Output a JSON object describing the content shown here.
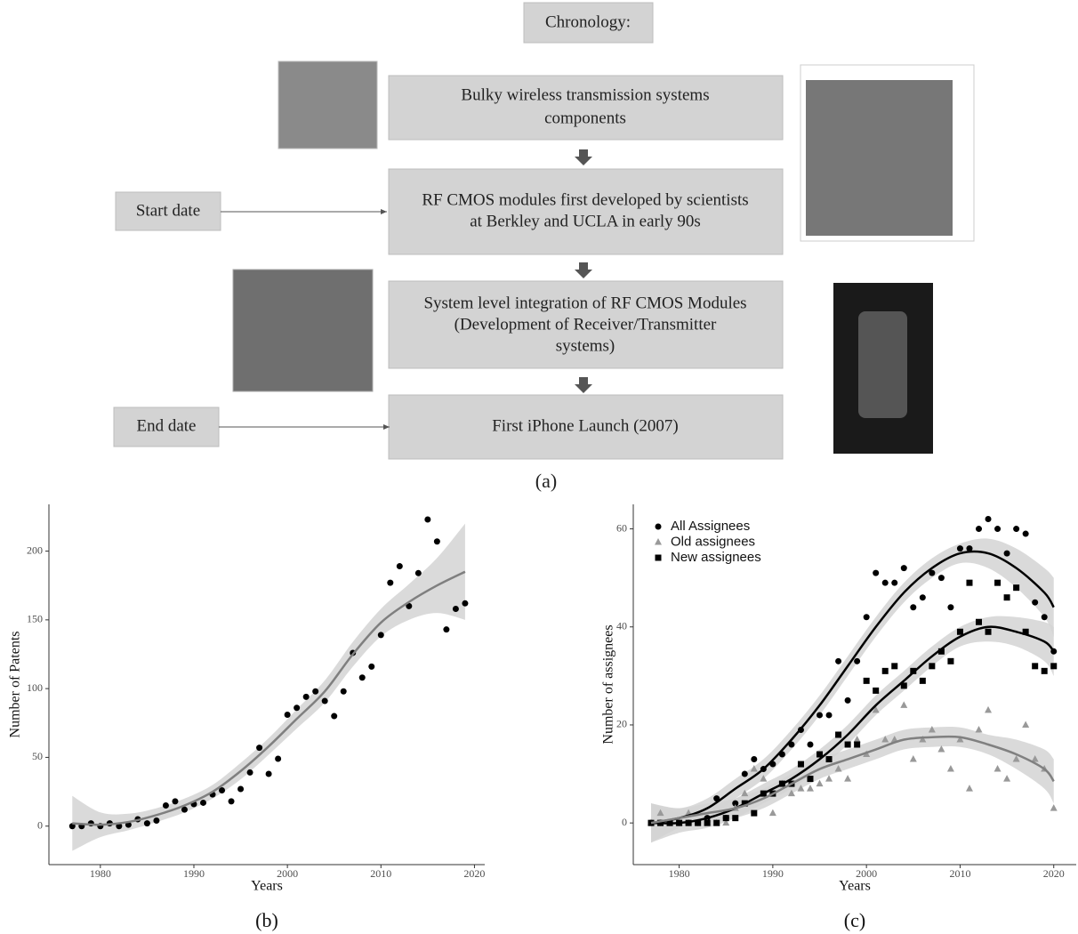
{
  "diagram": {
    "title": "Chronology:",
    "steps": [
      {
        "lines": [
          "Bulky wireless transmission systems",
          "components"
        ]
      },
      {
        "lines": [
          "RF CMOS modules first developed by scientists",
          "at Berkley and UCLA in early 90s"
        ]
      },
      {
        "lines": [
          "System level integration of RF CMOS Modules",
          "(Development of Receiver/Transmitter",
          "systems)"
        ]
      },
      {
        "lines": [
          "First iPhone Launch (2007)"
        ]
      }
    ],
    "start_label": "Start date",
    "end_label": "End date",
    "caption": "(a)"
  },
  "chart_data": [
    {
      "type": "scatter",
      "caption": "(b)",
      "xlabel": "Years",
      "ylabel": "Number of Patents",
      "xlim": [
        1974.5,
        2021.1
      ],
      "ylim": [
        -28,
        234
      ],
      "xticks": [
        1980,
        1990,
        2000,
        2010,
        2020
      ],
      "yticks": [
        0,
        50,
        100,
        150,
        200
      ],
      "series": [
        {
          "color": "#000000",
          "marker": "circle",
          "x": [
            1977,
            1978,
            1979,
            1980,
            1981,
            1982,
            1983,
            1984,
            1985,
            1986,
            1987,
            1988,
            1989,
            1990,
            1991,
            1992,
            1993,
            1994,
            1995,
            1996,
            1997,
            1998,
            1999,
            2000,
            2001,
            2002,
            2003,
            2004,
            2005,
            2006,
            2007,
            2008,
            2009,
            2010,
            2011,
            2012,
            2013,
            2014,
            2015,
            2016,
            2017,
            2018,
            2019
          ],
          "values": [
            0,
            0,
            2,
            0,
            2,
            0,
            1,
            5,
            2,
            4,
            15,
            18,
            12,
            16,
            17,
            23,
            26,
            18,
            27,
            39,
            57,
            38,
            49,
            81,
            86,
            94,
            98,
            91,
            80,
            98,
            126,
            108,
            116,
            139,
            177,
            189,
            160,
            184,
            223,
            207,
            143,
            158,
            162
          ]
        },
        {
          "color": "#7f7f7f",
          "band_color": "#d3d3d3",
          "style": "smooth",
          "x": [
            1977,
            1980,
            1983,
            1986,
            1989,
            1992,
            1995,
            1998,
            2001,
            2004,
            2007,
            2010,
            2013,
            2016,
            2019
          ],
          "values": [
            2,
            1,
            3,
            8,
            15,
            25,
            40,
            58,
            78,
            98,
            125,
            148,
            163,
            175,
            185
          ],
          "lower": [
            -18,
            -8,
            -3,
            3,
            10,
            20,
            34,
            52,
            71,
            90,
            116,
            138,
            150,
            155,
            150
          ],
          "upper": [
            22,
            10,
            9,
            13,
            20,
            30,
            46,
            64,
            85,
            106,
            134,
            158,
            176,
            195,
            220
          ]
        }
      ]
    },
    {
      "type": "scatter",
      "caption": "(c)",
      "xlabel": "Years",
      "ylabel": "Number of assignees",
      "xlim": [
        1975.1,
        2022.4
      ],
      "ylim": [
        -8.5,
        65
      ],
      "xticks": [
        1980,
        1990,
        2000,
        2010,
        2020
      ],
      "yticks": [
        0,
        20,
        40,
        60
      ],
      "legend": "top-left",
      "series": [
        {
          "name": "All Assignees",
          "color": "#000000",
          "marker": "circle",
          "x": [
            1977,
            1978,
            1979,
            1980,
            1981,
            1982,
            1983,
            1984,
            1985,
            1986,
            1987,
            1988,
            1989,
            1990,
            1991,
            1992,
            1993,
            1994,
            1995,
            1996,
            1997,
            1998,
            1999,
            2000,
            2001,
            2002,
            2003,
            2004,
            2005,
            2006,
            2007,
            2008,
            2009,
            2010,
            2011,
            2012,
            2013,
            2014,
            2015,
            2016,
            2017,
            2018,
            2019,
            2020
          ],
          "values": [
            0,
            0,
            0,
            0,
            0,
            0,
            1,
            5,
            1,
            4,
            10,
            13,
            11,
            12,
            14,
            16,
            19,
            16,
            22,
            22,
            33,
            25,
            33,
            42,
            51,
            49,
            49,
            52,
            44,
            46,
            51,
            50,
            44,
            56,
            56,
            60,
            62,
            60,
            55,
            60,
            59,
            45,
            42,
            35
          ]
        },
        {
          "name": "Old assignees",
          "color": "#999999",
          "marker": "triangle",
          "x": [
            1977,
            1978,
            1979,
            1980,
            1981,
            1982,
            1983,
            1984,
            1985,
            1986,
            1987,
            1988,
            1989,
            1990,
            1991,
            1992,
            1993,
            1994,
            1995,
            1996,
            1997,
            1998,
            1999,
            2000,
            2001,
            2002,
            2003,
            2004,
            2005,
            2006,
            2007,
            2008,
            2009,
            2010,
            2011,
            2012,
            2013,
            2014,
            2015,
            2016,
            2017,
            2018,
            2019,
            2020
          ],
          "values": [
            0,
            2,
            0,
            0,
            2,
            0,
            0,
            0,
            0,
            3,
            6,
            11,
            9,
            2,
            8,
            6,
            7,
            7,
            8,
            9,
            11,
            9,
            17,
            14,
            23,
            17,
            17,
            24,
            13,
            17,
            19,
            15,
            11,
            17,
            7,
            19,
            23,
            11,
            9,
            13,
            20,
            13,
            11,
            3
          ]
        },
        {
          "name": "New assignees",
          "color": "#000000",
          "marker": "square",
          "x": [
            1977,
            1978,
            1979,
            1980,
            1981,
            1982,
            1983,
            1984,
            1985,
            1986,
            1987,
            1988,
            1989,
            1990,
            1991,
            1992,
            1993,
            1994,
            1995,
            1996,
            1997,
            1998,
            1999,
            2000,
            2001,
            2002,
            2003,
            2004,
            2005,
            2006,
            2007,
            2008,
            2009,
            2010,
            2011,
            2012,
            2013,
            2014,
            2015,
            2016,
            2017,
            2018,
            2019,
            2020
          ],
          "values": [
            0,
            0,
            0,
            0,
            0,
            0,
            0,
            0,
            1,
            1,
            4,
            2,
            6,
            6,
            8,
            8,
            12,
            9,
            14,
            13,
            18,
            16,
            16,
            29,
            27,
            31,
            32,
            28,
            31,
            29,
            32,
            35,
            33,
            39,
            49,
            41,
            39,
            49,
            46,
            48,
            39,
            32,
            31,
            32
          ]
        },
        {
          "color": "#000000",
          "band_color": "#d3d3d3",
          "style": "smooth",
          "x": [
            1977,
            1980,
            1983,
            1986,
            1989,
            1992,
            1995,
            1998,
            2001,
            2004,
            2007,
            2010,
            2013,
            2016,
            2019,
            2020
          ],
          "values": [
            0,
            1,
            3,
            7,
            11,
            17,
            24,
            32,
            40,
            47,
            52,
            55,
            55,
            52,
            47,
            44
          ],
          "lower": [
            -4,
            -1,
            1,
            5,
            9,
            15,
            22,
            30,
            38,
            45,
            50,
            53,
            52,
            48,
            42,
            38
          ],
          "upper": [
            4,
            3,
            5,
            9,
            13,
            19,
            26,
            34,
            42,
            49,
            54,
            57,
            58,
            56,
            52,
            50
          ]
        },
        {
          "color": "#000000",
          "band_color": "#d3d3d3",
          "style": "smooth",
          "x": [
            1977,
            1980,
            1983,
            1986,
            1989,
            1992,
            1995,
            1998,
            2001,
            2004,
            2007,
            2010,
            2013,
            2016,
            2019,
            2020
          ],
          "values": [
            0,
            0,
            1,
            3,
            6,
            9,
            13,
            18,
            24,
            29,
            34,
            38,
            40,
            39,
            37,
            35
          ],
          "lower": [
            -4,
            -2,
            -1,
            1,
            4,
            7,
            11,
            16,
            22,
            27,
            32,
            36,
            37,
            36,
            33,
            30
          ],
          "upper": [
            4,
            2,
            3,
            5,
            8,
            11,
            15,
            20,
            26,
            31,
            36,
            40,
            42,
            42,
            41,
            40
          ]
        },
        {
          "color": "#808080",
          "band_color": "#d3d3d3",
          "style": "smooth",
          "x": [
            1977,
            1980,
            1983,
            1986,
            1989,
            1992,
            1995,
            1998,
            2001,
            2004,
            2007,
            2010,
            2013,
            2016,
            2019,
            2020
          ],
          "values": [
            0,
            1,
            2,
            3,
            5,
            8,
            11,
            13,
            15,
            17,
            17.5,
            17.5,
            16,
            14,
            11,
            8.5
          ],
          "lower": [
            -4,
            -1,
            0,
            1,
            3,
            6,
            9,
            11,
            13,
            15,
            15.5,
            15.5,
            14,
            11,
            7,
            4
          ],
          "upper": [
            4,
            3,
            4,
            5,
            7,
            10,
            13,
            15,
            17,
            19,
            19.5,
            19.5,
            18,
            17,
            15,
            13
          ]
        }
      ]
    }
  ]
}
